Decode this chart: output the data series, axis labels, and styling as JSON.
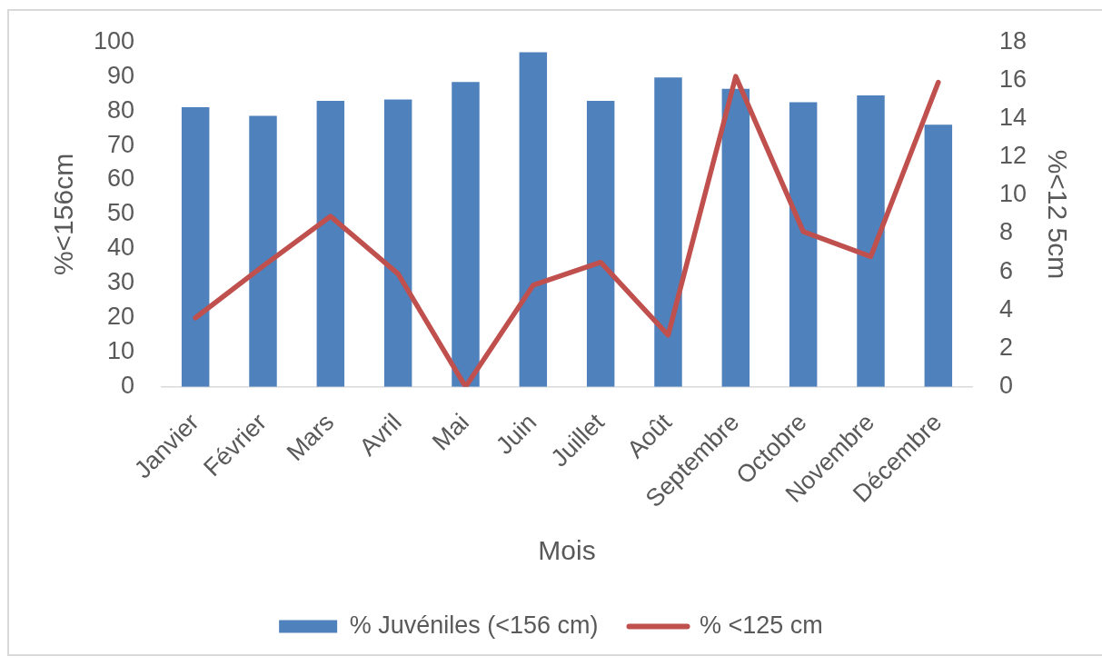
{
  "chart_data": {
    "type": "bar",
    "xlabel": "Mois",
    "ylabel": "%<156cm",
    "y2label": "%<12 5cm",
    "categories": [
      "Janvier",
      "Février",
      "Mars",
      "Avril",
      "Mai",
      "Juin",
      "Juillet",
      "Août",
      "Septembre",
      "Octobre",
      "Novembre",
      "Décembre"
    ],
    "series": [
      {
        "name": "% Juvéniles (<156 cm)",
        "color": "#4f81bd",
        "values": [
          81.1,
          78.6,
          82.9,
          83.3,
          88.4,
          97.0,
          82.9,
          89.7,
          86.4,
          82.5,
          84.5,
          76.0
        ]
      },
      {
        "name": "% <125 cm",
        "type": "line",
        "axis": "y2",
        "color": "#c0504d",
        "values": [
          3.6,
          6.3,
          8.9,
          5.9,
          0,
          5.3,
          6.5,
          2.7,
          16.2,
          8.1,
          6.8,
          15.9
        ]
      }
    ],
    "ylim": [
      0,
      100
    ],
    "yticks": [
      0,
      10,
      20,
      30,
      40,
      50,
      60,
      70,
      80,
      90,
      100
    ],
    "y2lim": [
      0,
      18
    ],
    "y2ticks": [
      0,
      2,
      4,
      6,
      8,
      10,
      12,
      14,
      16,
      18
    ],
    "grid": false,
    "legend": "bottom",
    "marker": "none"
  }
}
